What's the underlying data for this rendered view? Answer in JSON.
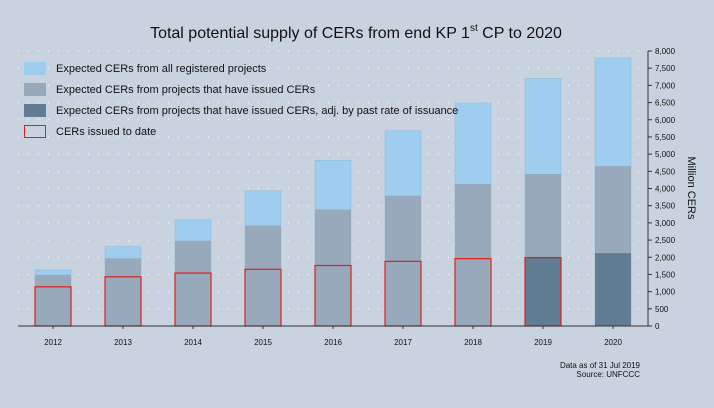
{
  "chart_data": {
    "type": "bar",
    "title_main": "Total potential supply of CERs from end KP 1",
    "title_sup": "st",
    "title_tail": " CP to 2020",
    "ylabel": "Million CERs",
    "ylim": [
      0,
      8000
    ],
    "yticks": [
      0,
      500,
      1000,
      1500,
      2000,
      2500,
      3000,
      3500,
      4000,
      4500,
      5000,
      5500,
      6000,
      6500,
      7000,
      7500,
      8000
    ],
    "ytick_labels": [
      "0",
      "500",
      "1,000",
      "1,500",
      "2,000",
      "2,500",
      "3,000",
      "3,500",
      "4,000",
      "4,500",
      "5,000",
      "5,500",
      "6,000",
      "6,500",
      "7,000",
      "7,500",
      "8,000"
    ],
    "categories": [
      "2012",
      "2013",
      "2014",
      "2015",
      "2016",
      "2017",
      "2018",
      "2019",
      "2020"
    ],
    "series": [
      {
        "name": "Expected CERs from all registered projects",
        "color": "#9fcdef",
        "values": [
          1630,
          2310,
          3090,
          3930,
          4820,
          5680,
          6490,
          7200,
          7800
        ]
      },
      {
        "name": "Expected CERs from projects that have issued CERs",
        "color": "#98a9bb",
        "values": [
          1490,
          1970,
          2480,
          2920,
          3390,
          3790,
          4130,
          4420,
          4650
        ]
      },
      {
        "name": "Expected CERs from projects that have issued CERs, adj. by past rate of issuance",
        "color": "#607d93",
        "values": [
          null,
          null,
          null,
          null,
          null,
          null,
          null,
          1990,
          2120
        ]
      },
      {
        "name": "CERs issued to date",
        "color": "#e0201a",
        "values": [
          1140,
          1430,
          1540,
          1650,
          1760,
          1880,
          1960,
          1990,
          null
        ]
      }
    ],
    "legend_position": "top-left",
    "footnote_date": "Data as of 31 Jul 2019",
    "footnote_source": "Source: UNFCCC"
  }
}
